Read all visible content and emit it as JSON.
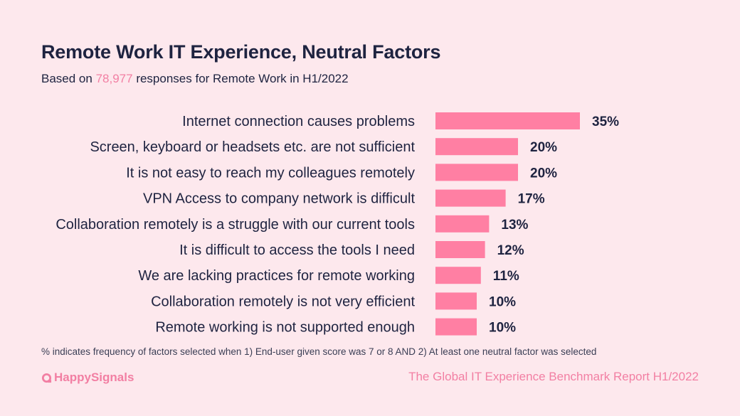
{
  "header": {
    "title": "Remote Work IT Experience, Neutral Factors",
    "subtitle_prefix": "Based on",
    "subtitle_count": "78,977",
    "subtitle_suffix": "responses for Remote Work in H1/2022"
  },
  "chart_data": {
    "type": "bar",
    "orientation": "horizontal",
    "categories": [
      "Internet connection causes problems",
      "Screen, keyboard or headsets etc. are not sufficient",
      "It is not easy to reach my colleagues remotely",
      "VPN Access to company network is difficult",
      "Collaboration remotely is a struggle with our current tools",
      "It is difficult to access the tools I need",
      "We are lacking practices for remote working",
      "Collaboration remotely is not very efficient",
      "Remote working is not supported enough"
    ],
    "values": [
      35,
      20,
      20,
      17,
      13,
      12,
      11,
      10,
      10
    ],
    "value_labels": [
      "35%",
      "20%",
      "20%",
      "17%",
      "13%",
      "12%",
      "11%",
      "10%",
      "10%"
    ],
    "unit": "%",
    "bar_color": "#ff7fa3",
    "grid": false,
    "legend": "none"
  },
  "footer": {
    "note": "% indicates frequency of factors selected when 1) End-user given score was 7 or 8 AND 2) At least one neutral factor was selected",
    "brand_name": "HappySignals",
    "report_title": "The Global IT Experience Benchmark Report H1/2022"
  },
  "colors": {
    "background": "#fde8ed",
    "accent": "#f27fa3",
    "text": "#1e2340"
  },
  "icons": {
    "brand": "happysignals-logo-icon"
  }
}
